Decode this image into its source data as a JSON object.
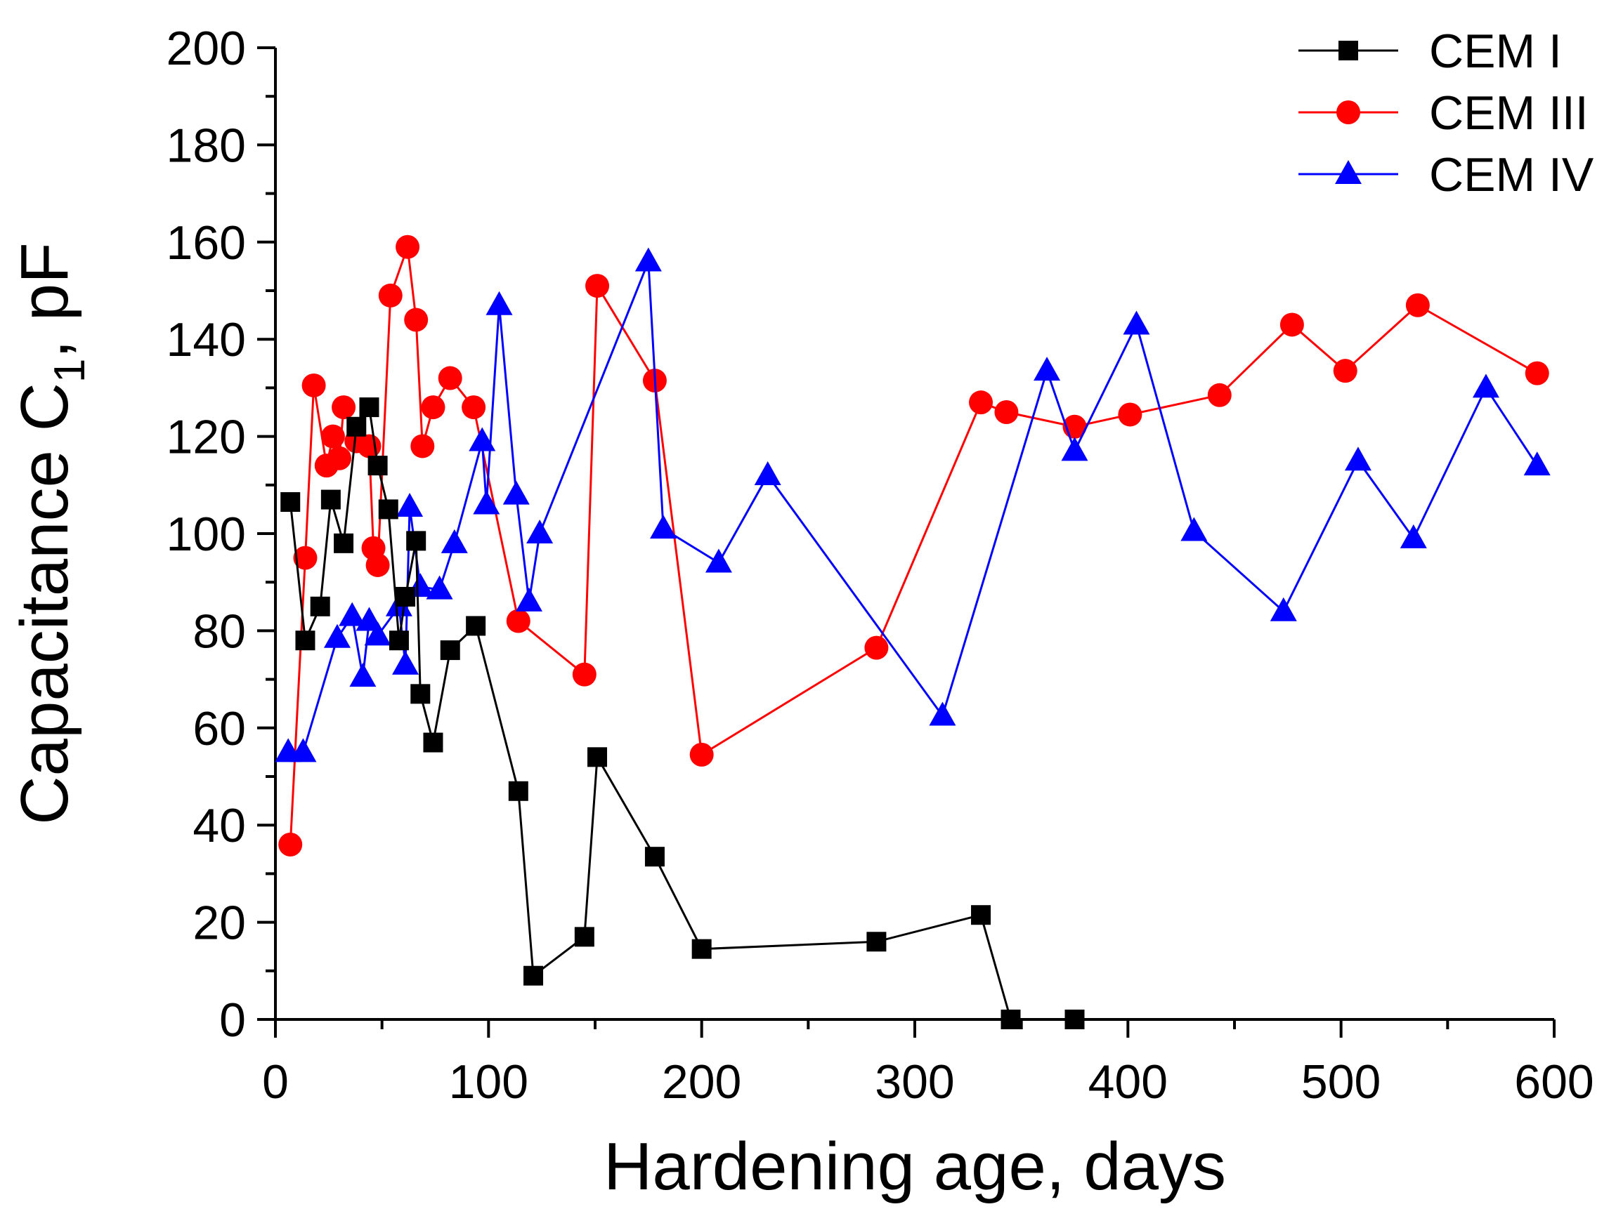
{
  "chart_data": {
    "type": "line",
    "title": "",
    "xlabel": "Hardening age, days",
    "ylabel": {
      "main": "Capacitance C",
      "subscript": "1",
      "suffix": ", pF"
    },
    "xlim": [
      0,
      600
    ],
    "ylim": [
      0,
      200
    ],
    "xticks": [
      0,
      100,
      200,
      300,
      400,
      500,
      600
    ],
    "yticks": [
      0,
      20,
      40,
      60,
      80,
      100,
      120,
      140,
      160,
      180,
      200
    ],
    "legend": "top-right",
    "grid": false,
    "series": [
      {
        "name": "CEM I",
        "color": "#000000",
        "marker": "square",
        "points": [
          [
            7,
            106.5
          ],
          [
            14,
            78
          ],
          [
            21,
            85
          ],
          [
            26,
            107
          ],
          [
            32,
            98
          ],
          [
            38,
            122
          ],
          [
            44,
            126
          ],
          [
            48,
            114
          ],
          [
            53,
            105
          ],
          [
            58,
            78
          ],
          [
            61,
            87
          ],
          [
            66,
            98.5
          ],
          [
            68,
            67
          ],
          [
            74,
            57
          ],
          [
            82,
            76
          ],
          [
            94,
            81
          ],
          [
            114,
            47
          ],
          [
            121,
            9
          ],
          [
            145,
            17
          ],
          [
            151,
            54
          ],
          [
            178,
            33.5
          ],
          [
            200,
            14.5
          ],
          [
            282,
            16
          ],
          [
            331,
            21.5
          ],
          [
            345,
            0
          ],
          [
            375,
            0
          ]
        ]
      },
      {
        "name": "CEM III",
        "color": "#ff0000",
        "marker": "circle",
        "points": [
          [
            7,
            36
          ],
          [
            14,
            95
          ],
          [
            18,
            130.5
          ],
          [
            24,
            114
          ],
          [
            27,
            120
          ],
          [
            30,
            115.5
          ],
          [
            32,
            126
          ],
          [
            38,
            119
          ],
          [
            44,
            118
          ],
          [
            46,
            97
          ],
          [
            48,
            93.5
          ],
          [
            54,
            149
          ],
          [
            62,
            159
          ],
          [
            66,
            144
          ],
          [
            69,
            118
          ],
          [
            74,
            126
          ],
          [
            82,
            132
          ],
          [
            93,
            126
          ],
          [
            114,
            82
          ],
          [
            145,
            71
          ],
          [
            151,
            151
          ],
          [
            178,
            131.5
          ],
          [
            200,
            54.5
          ],
          [
            282,
            76.5
          ],
          [
            331,
            127
          ],
          [
            343,
            125
          ],
          [
            375,
            122
          ],
          [
            401,
            124.5
          ],
          [
            443,
            128.5
          ],
          [
            477,
            143
          ],
          [
            502,
            133.5
          ],
          [
            536,
            147
          ],
          [
            592,
            133
          ]
        ]
      },
      {
        "name": "CEM IV",
        "color": "#0000ff",
        "marker": "triangle",
        "points": [
          [
            6,
            55
          ],
          [
            13,
            55
          ],
          [
            29,
            78.5
          ],
          [
            36,
            83
          ],
          [
            41,
            70.5
          ],
          [
            44,
            82
          ],
          [
            48,
            79
          ],
          [
            58,
            85
          ],
          [
            61,
            73
          ],
          [
            63,
            105.5
          ],
          [
            68,
            89
          ],
          [
            77,
            88.5
          ],
          [
            84,
            98
          ],
          [
            97,
            119
          ],
          [
            99,
            106
          ],
          [
            105,
            147
          ],
          [
            113,
            108
          ],
          [
            119,
            86
          ],
          [
            124,
            100
          ],
          [
            175,
            156
          ],
          [
            182,
            101
          ],
          [
            208,
            94
          ],
          [
            231,
            112
          ],
          [
            313,
            62.5
          ],
          [
            362,
            133.5
          ],
          [
            375,
            117
          ],
          [
            404,
            143
          ],
          [
            431,
            100.5
          ],
          [
            473,
            84
          ],
          [
            508,
            115
          ],
          [
            534,
            99
          ],
          [
            568,
            130
          ],
          [
            592,
            114
          ]
        ]
      }
    ]
  }
}
